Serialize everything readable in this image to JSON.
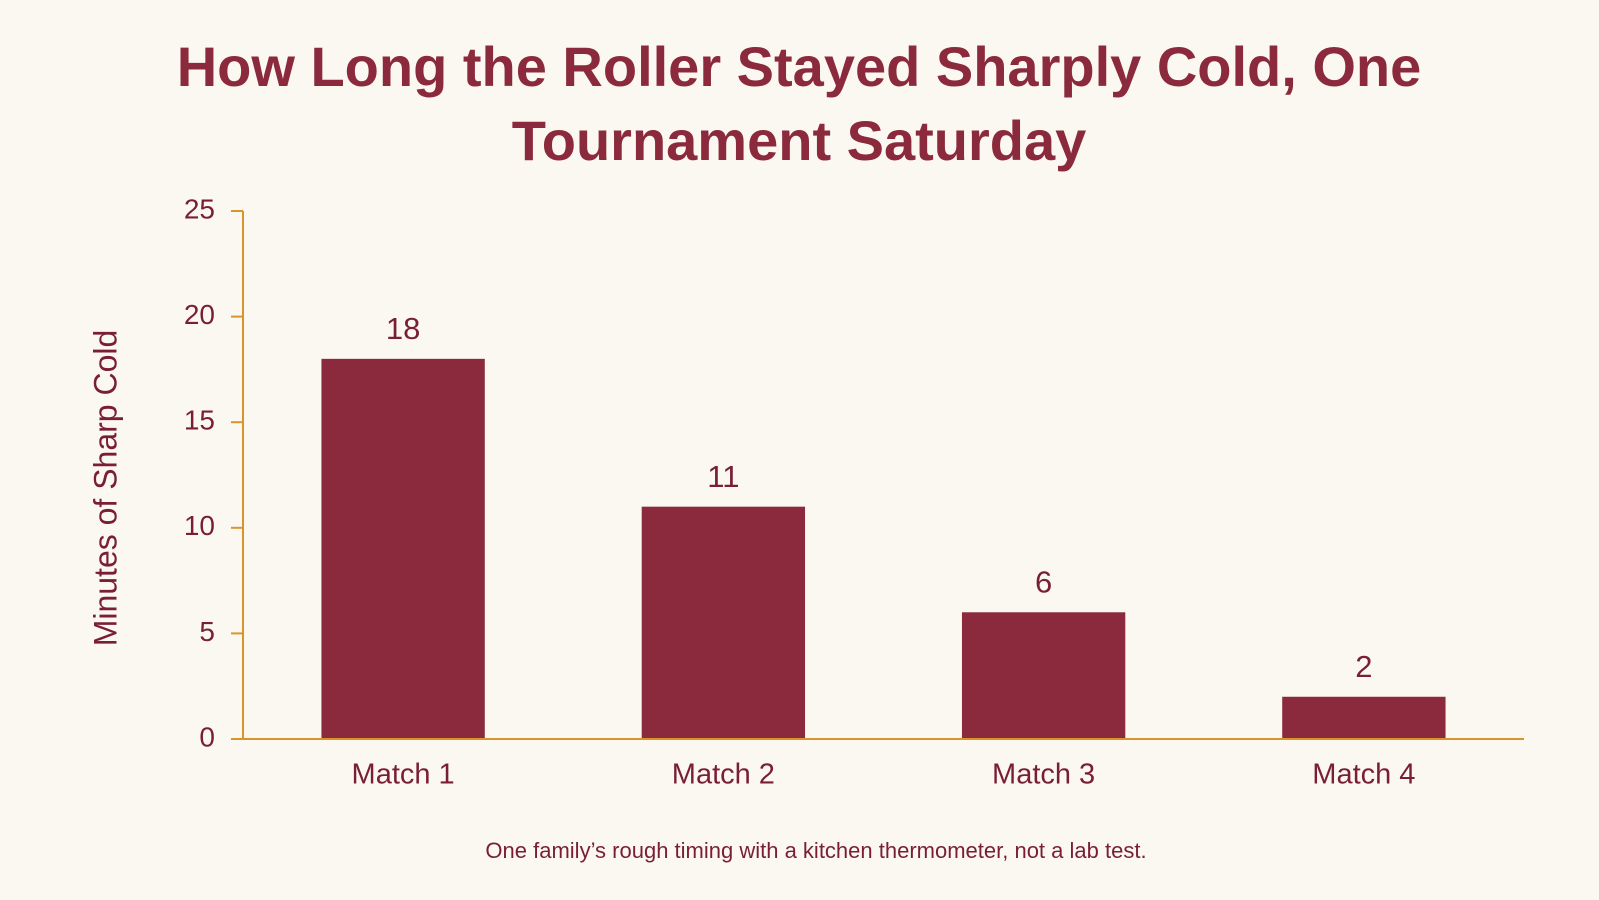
{
  "chart_data": {
    "type": "bar",
    "title": "How Long the Roller Stayed Sharply Cold, One Tournament Saturday",
    "y_label": "Minutes of Sharp Cold",
    "note": "One family’s rough timing with a kitchen thermometer, not a lab test.",
    "categories": [
      "Match 1",
      "Match 2",
      "Match 3",
      "Match 4"
    ],
    "values": [
      18,
      11,
      6,
      2
    ],
    "color": "#8b2a3c",
    "ylim": [
      0,
      25
    ],
    "yticks": [
      0,
      5,
      10,
      15,
      20,
      25
    ],
    "grid": false
  }
}
